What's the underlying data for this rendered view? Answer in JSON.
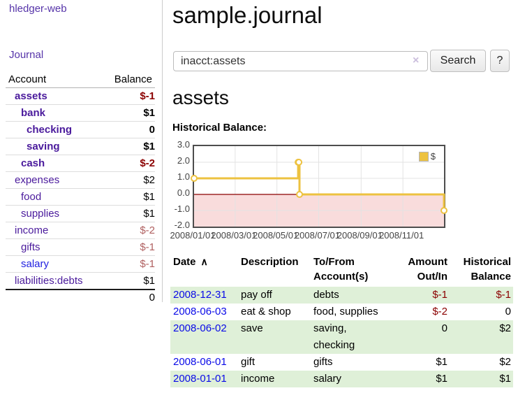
{
  "app": {
    "title": "hledger-web",
    "nav_journal": "Journal"
  },
  "sidebar": {
    "accounts_header": {
      "account": "Account",
      "balance": "Balance"
    },
    "accounts": [
      {
        "name": "assets",
        "balance": "$-1",
        "depth": 1,
        "bold": true,
        "negative": true
      },
      {
        "name": "bank",
        "balance": "$1",
        "depth": 2,
        "bold": true,
        "negative": false
      },
      {
        "name": "checking",
        "balance": "0",
        "depth": 3,
        "bold": true,
        "negative": false
      },
      {
        "name": "saving",
        "balance": "$1",
        "depth": 3,
        "bold": true,
        "negative": false
      },
      {
        "name": "cash",
        "balance": "$-2",
        "depth": 2,
        "bold": true,
        "negative": true
      },
      {
        "name": "expenses",
        "balance": "$2",
        "depth": 1,
        "bold": false,
        "negative": false
      },
      {
        "name": "food",
        "balance": "$1",
        "depth": 2,
        "bold": false,
        "negative": false
      },
      {
        "name": "supplies",
        "balance": "$1",
        "depth": 2,
        "bold": false,
        "negative": false
      },
      {
        "name": "income",
        "balance": "$-2",
        "depth": 1,
        "bold": false,
        "negative": true
      },
      {
        "name": "gifts",
        "balance": "$-1",
        "depth": 2,
        "bold": false,
        "negative": true
      },
      {
        "name": "salary",
        "balance": "$-1",
        "depth": 2,
        "bold": false,
        "negative": true,
        "unvisited": true
      },
      {
        "name": "liabilities:debts",
        "balance": "$1",
        "depth": 1,
        "bold": false,
        "negative": false
      }
    ],
    "total": "0"
  },
  "header": {
    "title": "sample.journal"
  },
  "search": {
    "value": "inacct:assets",
    "clear_icon": "×",
    "button_label": "Search",
    "help_label": "?"
  },
  "account_page": {
    "title": "assets",
    "chart_label": "Historical Balance:"
  },
  "chart_data": {
    "type": "line",
    "title": "Historical Balance:",
    "step": true,
    "series": [
      {
        "name": "$",
        "color": "#edc240",
        "points": [
          [
            "2008-01-01",
            1
          ],
          [
            "2008-06-01",
            2
          ],
          [
            "2008-06-02",
            2
          ],
          [
            "2008-06-03",
            0
          ],
          [
            "2008-12-31",
            -1
          ]
        ]
      }
    ],
    "xlim": [
      "2008-01-01",
      "2008-12-31"
    ],
    "ylim": [
      -2,
      3
    ],
    "x_ticks": [
      "2008/01/01",
      "2008/03/01",
      "2008/05/01",
      "2008/07/01",
      "2008/09/01",
      "2008/11/01"
    ],
    "y_ticks": [
      3.0,
      2.0,
      1.0,
      0.0,
      -1.0,
      -2.0
    ],
    "grid": true,
    "grid_color": "#e3e3e3",
    "zero_line_color": "#8b0000",
    "negative_fill": "#f9dcdc",
    "legend_position": "top-right"
  },
  "register": {
    "sort_icon": "∧",
    "columns": [
      {
        "line1": "Date",
        "line2": "",
        "align": "left",
        "sortable": true
      },
      {
        "line1": "Description",
        "line2": "",
        "align": "left"
      },
      {
        "line1": "To/From",
        "line2": "Account(s)",
        "align": "left"
      },
      {
        "line1": "Amount",
        "line2": "Out/In",
        "align": "right"
      },
      {
        "line1": "Historical",
        "line2": "Balance",
        "align": "right"
      }
    ],
    "rows": [
      {
        "date": "2008-12-31",
        "description": "pay off",
        "accounts_lines": [
          "debts"
        ],
        "amount": "$-1",
        "amount_negative": true,
        "balance": "$-1",
        "balance_negative": true
      },
      {
        "date": "2008-06-03",
        "description": "eat & shop",
        "accounts_lines": [
          "food, supplies"
        ],
        "amount": "$-2",
        "amount_negative": true,
        "balance": "0",
        "balance_negative": false
      },
      {
        "date": "2008-06-02",
        "description": "save",
        "accounts_lines": [
          "saving,",
          "checking"
        ],
        "amount": "0",
        "amount_negative": false,
        "balance": "$2",
        "balance_negative": false
      },
      {
        "date": "2008-06-01",
        "description": "gift",
        "accounts_lines": [
          "gifts"
        ],
        "amount": "$1",
        "amount_negative": false,
        "balance": "$2",
        "balance_negative": false
      },
      {
        "date": "2008-01-01",
        "description": "income",
        "accounts_lines": [
          "salary"
        ],
        "amount": "$1",
        "amount_negative": false,
        "balance": "$1",
        "balance_negative": false
      }
    ]
  },
  "colors": {
    "link_purple": "#4a1a9c",
    "nav_purple": "#5634a9",
    "link_blue": "#0a0ae8",
    "negative_red": "#8b0000",
    "negative_soft": "#b06060",
    "stripe_green": "#dff0d8",
    "series_gold": "#edc240"
  }
}
